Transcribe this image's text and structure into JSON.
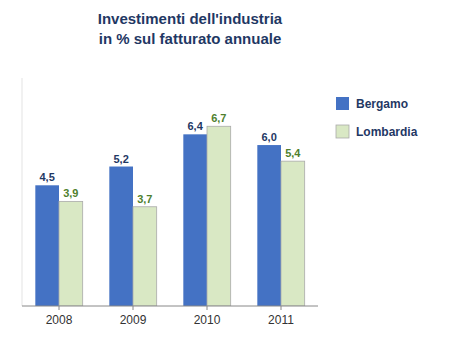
{
  "chart_data": {
    "type": "bar",
    "title": "Investimenti dell'industria\nin % sul fatturato annuale",
    "categories": [
      "2008",
      "2009",
      "2010",
      "2011"
    ],
    "series": [
      {
        "name": "Bergamo",
        "color": "#4472C4",
        "values": [
          4.5,
          5.2,
          6.4,
          6.0
        ],
        "value_labels": [
          "4,5",
          "5,2",
          "6,4",
          "6,0"
        ]
      },
      {
        "name": "Lombardia",
        "color": "#D9E8C4",
        "values": [
          3.9,
          3.7,
          6.7,
          5.4
        ],
        "value_labels": [
          "3,9",
          "3,7",
          "6,7",
          "5,4"
        ]
      }
    ],
    "ylim": [
      0,
      8.5
    ],
    "tick_labels": "x",
    "data_labels": true,
    "grid": false,
    "legend": "right"
  }
}
